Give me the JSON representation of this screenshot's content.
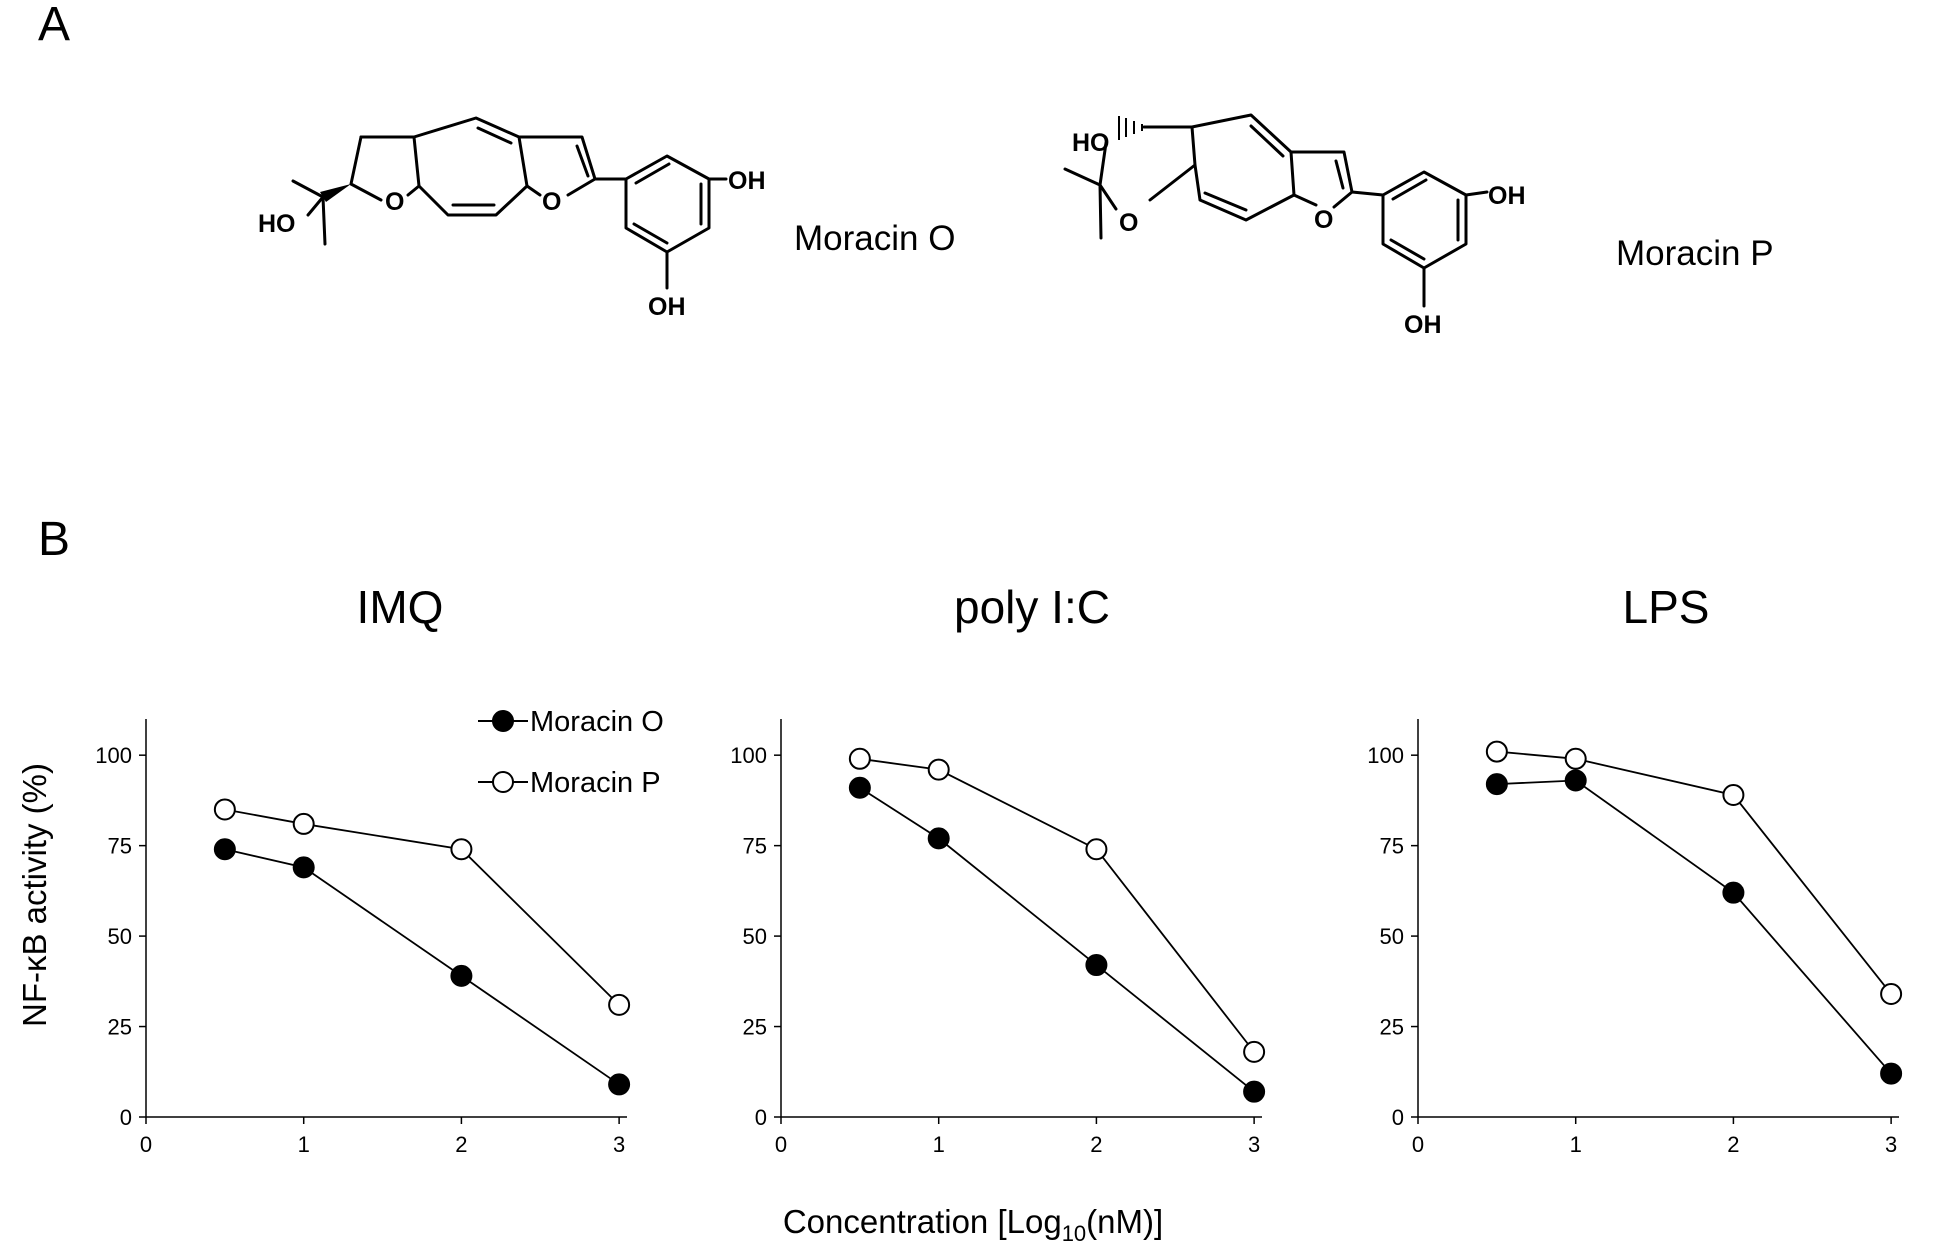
{
  "panels": {
    "a_label": "A",
    "b_label": "B"
  },
  "structures": [
    {
      "name": "Moracin O",
      "atoms": [
        "HO",
        "O",
        "O",
        "OH",
        "OH"
      ]
    },
    {
      "name": "Moracin P",
      "atoms": [
        "HO",
        "O",
        "O",
        "OH",
        "OH"
      ]
    }
  ],
  "x_axis_title": {
    "base": "Concentration [Log",
    "subscript": "10",
    "suffix": "(nM)]"
  },
  "y_axis_title": "NF-κB activity (%)",
  "legend": {
    "placement": "top-right of first chart",
    "entries": [
      {
        "label": "Moracin O",
        "marker": "filled-circle"
      },
      {
        "label": "Moracin P",
        "marker": "open-circle"
      }
    ]
  },
  "chart_data": [
    {
      "type": "line",
      "title": "IMQ",
      "xlim": [
        0,
        3
      ],
      "ylim": [
        0,
        110
      ],
      "xticks": [
        0,
        1,
        2,
        3
      ],
      "yticks": [
        0,
        25,
        50,
        75,
        100
      ],
      "grid": false,
      "series": [
        {
          "name": "Moracin O",
          "marker": "filled",
          "x": [
            0.5,
            1,
            2,
            3
          ],
          "values": [
            74,
            69,
            39,
            9
          ]
        },
        {
          "name": "Moracin P",
          "marker": "open",
          "x": [
            0.5,
            1,
            2,
            3
          ],
          "values": [
            85,
            81,
            74,
            31
          ]
        }
      ]
    },
    {
      "type": "line",
      "title": "poly I:C",
      "xlim": [
        0,
        3
      ],
      "ylim": [
        0,
        110
      ],
      "xticks": [
        0,
        1,
        2,
        3
      ],
      "yticks": [
        0,
        25,
        50,
        75,
        100
      ],
      "grid": false,
      "series": [
        {
          "name": "Moracin O",
          "marker": "filled",
          "x": [
            0.5,
            1,
            2,
            3
          ],
          "values": [
            91,
            77,
            42,
            7
          ]
        },
        {
          "name": "Moracin P",
          "marker": "open",
          "x": [
            0.5,
            1,
            2,
            3
          ],
          "values": [
            99,
            96,
            74,
            18
          ]
        }
      ]
    },
    {
      "type": "line",
      "title": "LPS",
      "xlim": [
        0,
        3
      ],
      "ylim": [
        0,
        110
      ],
      "xticks": [
        0,
        1,
        2,
        3
      ],
      "yticks": [
        0,
        25,
        50,
        75,
        100
      ],
      "grid": false,
      "series": [
        {
          "name": "Moracin O",
          "marker": "filled",
          "x": [
            0.5,
            1,
            2,
            3
          ],
          "values": [
            92,
            93,
            62,
            12
          ]
        },
        {
          "name": "Moracin P",
          "marker": "open",
          "x": [
            0.5,
            1,
            2,
            3
          ],
          "values": [
            101,
            99,
            89,
            34
          ]
        }
      ]
    }
  ]
}
